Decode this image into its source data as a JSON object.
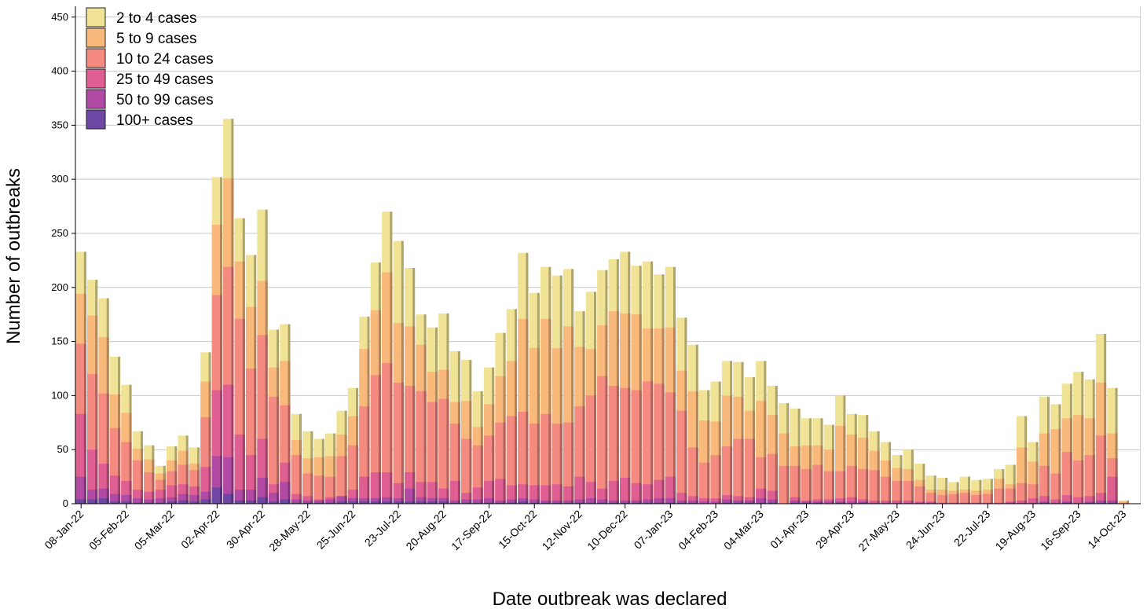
{
  "chart_data": {
    "type": "bar",
    "stacked": true,
    "xlabel": "Date outbreak was declared",
    "ylabel": "Number of outbreaks",
    "ylim": [
      0,
      460
    ],
    "yticks": [
      0,
      50,
      100,
      150,
      200,
      250,
      300,
      350,
      400,
      450
    ],
    "grid": "horizontal",
    "legend_position": "top-left",
    "shaded_region": {
      "from_week_index": 94,
      "to_week_index": 99,
      "color": "#d3d4d6"
    },
    "x_tick_every": 4,
    "categories": [
      "08-Jan-22",
      "15-Jan-22",
      "22-Jan-22",
      "29-Jan-22",
      "05-Feb-22",
      "12-Feb-22",
      "19-Feb-22",
      "26-Feb-22",
      "05-Mar-22",
      "12-Mar-22",
      "19-Mar-22",
      "26-Mar-22",
      "02-Apr-22",
      "09-Apr-22",
      "16-Apr-22",
      "23-Apr-22",
      "30-Apr-22",
      "07-May-22",
      "14-May-22",
      "21-May-22",
      "28-May-22",
      "04-Jun-22",
      "11-Jun-22",
      "18-Jun-22",
      "25-Jun-22",
      "02-Jul-22",
      "09-Jul-22",
      "16-Jul-22",
      "23-Jul-22",
      "30-Jul-22",
      "06-Aug-22",
      "13-Aug-22",
      "20-Aug-22",
      "27-Aug-22",
      "03-Sep-22",
      "10-Sep-22",
      "17-Sep-22",
      "24-Sep-22",
      "01-Oct-22",
      "08-Oct-22",
      "15-Oct-22",
      "22-Oct-22",
      "29-Oct-22",
      "05-Nov-22",
      "12-Nov-22",
      "19-Nov-22",
      "26-Nov-22",
      "03-Dec-22",
      "10-Dec-22",
      "17-Dec-22",
      "24-Dec-22",
      "31-Dec-22",
      "07-Jan-23",
      "14-Jan-23",
      "21-Jan-23",
      "28-Jan-23",
      "04-Feb-23",
      "11-Feb-23",
      "18-Feb-23",
      "25-Feb-23",
      "04-Mar-23",
      "11-Mar-23",
      "18-Mar-23",
      "25-Mar-23",
      "01-Apr-23",
      "08-Apr-23",
      "15-Apr-23",
      "22-Apr-23",
      "29-Apr-23",
      "06-May-23",
      "13-May-23",
      "20-May-23",
      "27-May-23",
      "03-Jun-23",
      "10-Jun-23",
      "17-Jun-23",
      "24-Jun-23",
      "01-Jul-23",
      "08-Jul-23",
      "15-Jul-23",
      "22-Jul-23",
      "29-Jul-23",
      "05-Aug-23",
      "12-Aug-23",
      "19-Aug-23",
      "26-Aug-23",
      "02-Sep-23",
      "09-Sep-23",
      "16-Sep-23",
      "23-Sep-23",
      "30-Sep-23",
      "07-Oct-23",
      "14-Oct-23",
      "21-Oct-23"
    ],
    "totals": [
      233,
      207,
      190,
      136,
      110,
      67,
      54,
      35,
      53,
      63,
      52,
      140,
      302,
      356,
      264,
      230,
      272,
      161,
      166,
      83,
      67,
      60,
      65,
      86,
      107,
      173,
      223,
      270,
      243,
      218,
      175,
      163,
      176,
      141,
      133,
      104,
      126,
      158,
      180,
      232,
      195,
      219,
      211,
      217,
      178,
      196,
      216,
      226,
      233,
      220,
      224,
      212,
      219,
      172,
      147,
      105,
      113,
      132,
      131,
      117,
      132,
      109,
      93,
      88,
      79,
      79,
      73,
      100,
      83,
      82,
      67,
      57,
      45,
      50,
      37,
      26,
      24,
      20,
      25,
      22,
      23,
      32,
      36,
      81,
      57,
      99,
      92,
      111,
      122,
      115,
      157,
      107,
      3,
      0
    ],
    "cum_5plus": [
      194,
      174,
      154,
      101,
      84,
      51,
      41,
      28,
      40,
      49,
      37,
      113,
      258,
      301,
      224,
      182,
      206,
      126,
      132,
      59,
      42,
      43,
      44,
      64,
      81,
      143,
      179,
      214,
      167,
      164,
      147,
      122,
      124,
      94,
      95,
      71,
      92,
      118,
      132,
      171,
      144,
      171,
      144,
      164,
      145,
      143,
      165,
      178,
      176,
      175,
      162,
      162,
      163,
      123,
      104,
      77,
      76,
      100,
      99,
      86,
      95,
      82,
      65,
      53,
      54,
      54,
      50,
      72,
      64,
      61,
      49,
      40,
      33,
      32,
      22,
      13,
      13,
      12,
      13,
      12,
      13,
      23,
      18,
      52,
      39,
      65,
      69,
      79,
      82,
      79,
      112,
      65,
      2,
      0
    ],
    "cum_10plus": [
      148,
      120,
      102,
      70,
      57,
      40,
      29,
      22,
      30,
      36,
      31,
      80,
      193,
      219,
      171,
      125,
      156,
      99,
      91,
      45,
      28,
      26,
      25,
      44,
      54,
      90,
      119,
      130,
      112,
      109,
      104,
      94,
      97,
      74,
      60,
      54,
      63,
      75,
      81,
      85,
      74,
      83,
      74,
      75,
      90,
      100,
      118,
      109,
      107,
      105,
      113,
      111,
      103,
      86,
      52,
      38,
      45,
      53,
      60,
      60,
      43,
      46,
      35,
      35,
      32,
      36,
      30,
      30,
      35,
      32,
      31,
      25,
      21,
      21,
      16,
      10,
      8,
      9,
      10,
      8,
      9,
      14,
      14,
      19,
      18,
      35,
      28,
      48,
      40,
      45,
      63,
      42,
      1,
      0
    ],
    "cum_25plus": [
      83,
      50,
      37,
      26,
      21,
      13,
      11,
      13,
      17,
      18,
      16,
      34,
      105,
      110,
      64,
      45,
      60,
      18,
      38,
      9,
      7,
      4,
      6,
      7,
      13,
      25,
      29,
      29,
      19,
      29,
      20,
      20,
      14,
      21,
      10,
      15,
      21,
      23,
      17,
      18,
      17,
      17,
      18,
      16,
      25,
      20,
      14,
      21,
      24,
      19,
      18,
      22,
      25,
      10,
      7,
      5,
      5,
      8,
      7,
      6,
      14,
      12,
      0,
      6,
      3,
      4,
      4,
      5,
      6,
      4,
      3,
      3,
      3,
      3,
      2,
      2,
      1,
      1,
      1,
      1,
      1,
      1,
      2,
      3,
      5,
      7,
      4,
      8,
      6,
      7,
      10,
      25,
      0,
      0
    ],
    "cum_50plus": [
      25,
      13,
      14,
      9,
      8,
      5,
      4,
      5,
      6,
      9,
      8,
      11,
      44,
      43,
      13,
      13,
      24,
      10,
      20,
      4,
      3,
      3,
      4,
      7,
      5,
      5,
      5,
      6,
      5,
      14,
      6,
      5,
      5,
      3,
      4,
      4,
      5,
      3,
      4,
      5,
      4,
      3,
      3,
      3,
      4,
      5,
      4,
      3,
      3,
      3,
      4,
      5,
      5,
      3,
      3,
      2,
      2,
      4,
      3,
      3,
      5,
      4,
      0,
      3,
      2,
      2,
      2,
      2,
      2,
      2,
      1,
      1,
      1,
      1,
      1,
      1,
      0,
      0,
      0,
      0,
      0,
      0,
      1,
      1,
      1,
      2,
      1,
      2,
      1,
      2,
      3,
      3,
      0,
      0
    ],
    "cum_100plus": [
      4,
      4,
      5,
      2,
      2,
      1,
      1,
      1,
      2,
      3,
      2,
      4,
      15,
      9,
      3,
      3,
      6,
      2,
      4,
      1,
      1,
      1,
      1,
      2,
      2,
      2,
      2,
      2,
      2,
      2,
      2,
      2,
      2,
      1,
      1,
      1,
      1,
      1,
      1,
      2,
      1,
      1,
      1,
      1,
      1,
      1,
      1,
      1,
      1,
      1,
      1,
      1,
      1,
      1,
      1,
      0,
      0,
      1,
      1,
      1,
      1,
      1,
      0,
      1,
      1,
      1,
      0,
      1,
      0,
      1,
      0,
      0,
      0,
      0,
      0,
      0,
      0,
      0,
      0,
      0,
      0,
      0,
      0,
      0,
      0,
      1,
      0,
      1,
      0,
      1,
      1,
      1,
      0,
      0
    ],
    "series": [
      {
        "name": "2 to 4 cases",
        "key": "totals",
        "color": "#f0e395"
      },
      {
        "name": "5 to 9 cases",
        "key": "cum_5plus",
        "color": "#f9b97b"
      },
      {
        "name": "10 to 24 cases",
        "key": "cum_10plus",
        "color": "#f48a80"
      },
      {
        "name": "25 to 49 cases",
        "key": "cum_25plus",
        "color": "#df5f92"
      },
      {
        "name": "50 to 99 cases",
        "key": "cum_50plus",
        "color": "#b04aa4"
      },
      {
        "name": "100+ cases",
        "key": "cum_100plus",
        "color": "#6e46a4"
      }
    ]
  }
}
